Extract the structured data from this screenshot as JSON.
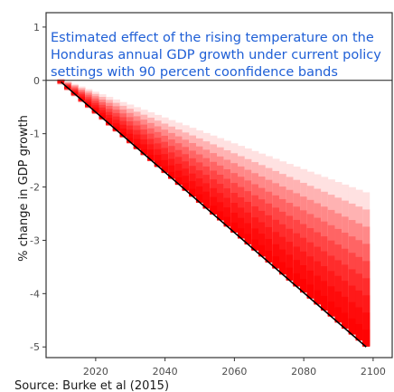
{
  "chart_data": {
    "type": "area",
    "title_lines": [
      "Estimated effect of the rising temperature on the",
      "Honduras annual GDP growth under current policy",
      "settings with 90 percent coonfidence bands"
    ],
    "ylabel": "% change in GDP growth",
    "xlabel": "",
    "source": "Source: Burke et al (2015)",
    "xlim": [
      2005.7,
      2105.5
    ],
    "ylim": [
      -5.2,
      1.27
    ],
    "x_ticks": [
      2020,
      2040,
      2060,
      2080,
      2100
    ],
    "y_ticks": [
      1,
      0,
      -1,
      -2,
      -3,
      -4,
      -5
    ],
    "zero_line": 0,
    "years": [
      2010,
      2098
    ],
    "central": {
      "start": -0.03,
      "end": -5.0
    },
    "band_upper": {
      "start": 0.03,
      "end": -2.1
    },
    "band_lower": {
      "start": -0.08,
      "end": -4.95
    },
    "colors": {
      "band_core": "#ff0000",
      "band_edge": "#ffffff",
      "central_line": "#000000",
      "title": "#1f5fd6"
    }
  }
}
